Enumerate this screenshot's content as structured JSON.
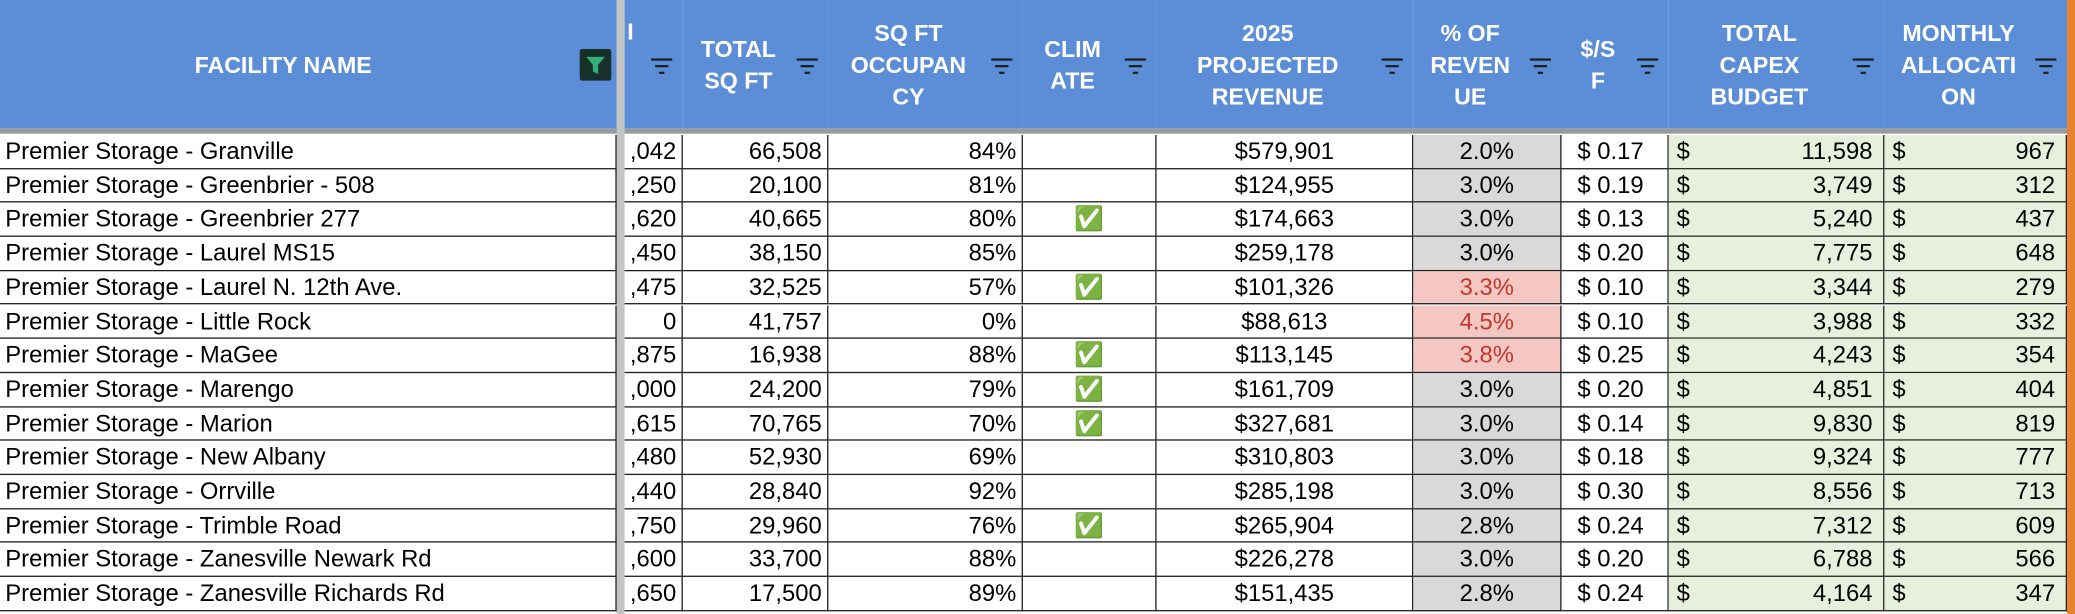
{
  "table": {
    "header": [
      "FACILITY NAME",
      "I",
      "TOTAL\nSQ FT",
      "SQ FT\nOCCUPAN\nCY",
      "CLIM\nATE",
      "2025\nPROJECTED\nREVENUE",
      "% OF\nREVEN\nUE",
      "$/S\nF",
      "TOTAL\nCAPEX\nBUDGET",
      "MONTHLY\nALLOCATI\nON"
    ],
    "rows": [
      [
        "Premier Storage - Granville",
        ",042",
        "66,508",
        "84%",
        "",
        "$579,901",
        "2.0%",
        "$ 0.17",
        [
          "$",
          "11,598"
        ],
        [
          "$",
          "967"
        ]
      ],
      [
        "Premier Storage - Greenbrier - 508",
        ",250",
        "20,100",
        "81%",
        "",
        "$124,955",
        "3.0%",
        "$ 0.19",
        [
          "$",
          "3,749"
        ],
        [
          "$",
          "312"
        ]
      ],
      [
        "Premier Storage - Greenbrier 277",
        ",620",
        "40,665",
        "80%",
        "✅",
        "$174,663",
        "3.0%",
        "$ 0.13",
        [
          "$",
          "5,240"
        ],
        [
          "$",
          "437"
        ]
      ],
      [
        "Premier Storage - Laurel MS15",
        ",450",
        "38,150",
        "85%",
        "",
        "$259,178",
        "3.0%",
        "$ 0.20",
        [
          "$",
          "7,775"
        ],
        [
          "$",
          "648"
        ]
      ],
      [
        "Premier Storage - Laurel N. 12th Ave.",
        ",475",
        "32,525",
        "57%",
        "✅",
        "$101,326",
        "3.3%",
        "$ 0.10",
        [
          "$",
          "3,344"
        ],
        [
          "$",
          "279"
        ]
      ],
      [
        "Premier Storage - Little Rock",
        "0",
        "41,757",
        "0%",
        "",
        "$88,613",
        "4.5%",
        "$ 0.10",
        [
          "$",
          "3,988"
        ],
        [
          "$",
          "332"
        ]
      ],
      [
        "Premier Storage - MaGee",
        ",875",
        "16,938",
        "88%",
        "✅",
        "$113,145",
        "3.8%",
        "$ 0.25",
        [
          "$",
          "4,243"
        ],
        [
          "$",
          "354"
        ]
      ],
      [
        "Premier Storage - Marengo",
        ",000",
        "24,200",
        "79%",
        "✅",
        "$161,709",
        "3.0%",
        "$ 0.20",
        [
          "$",
          "4,851"
        ],
        [
          "$",
          "404"
        ]
      ],
      [
        "Premier Storage - Marion",
        ",615",
        "70,765",
        "70%",
        "✅",
        "$327,681",
        "3.0%",
        "$ 0.14",
        [
          "$",
          "9,830"
        ],
        [
          "$",
          "819"
        ]
      ],
      [
        "Premier Storage - New Albany",
        ",480",
        "52,930",
        "69%",
        "",
        "$310,803",
        "3.0%",
        "$ 0.18",
        [
          "$",
          "9,324"
        ],
        [
          "$",
          "777"
        ]
      ],
      [
        "Premier Storage - Orrville",
        ",440",
        "28,840",
        "92%",
        "",
        "$285,198",
        "3.0%",
        "$ 0.30",
        [
          "$",
          "8,556"
        ],
        [
          "$",
          "713"
        ]
      ],
      [
        "Premier Storage - Trimble Road",
        ",750",
        "29,960",
        "76%",
        "✅",
        "$265,904",
        "2.8%",
        "$ 0.24",
        [
          "$",
          "7,312"
        ],
        [
          "$",
          "609"
        ]
      ],
      [
        "Premier Storage - Zanesville Newark Rd",
        ",600",
        "33,700",
        "88%",
        "",
        "$226,278",
        "3.0%",
        "$ 0.20",
        [
          "$",
          "6,788"
        ],
        [
          "$",
          "566"
        ]
      ],
      [
        "Premier Storage - Zanesville Richards Rd",
        ",650",
        "17,500",
        "89%",
        "",
        "$151,435",
        "2.8%",
        "$ 0.24",
        [
          "$",
          "4,164"
        ],
        [
          "$",
          "347"
        ]
      ]
    ]
  }
}
